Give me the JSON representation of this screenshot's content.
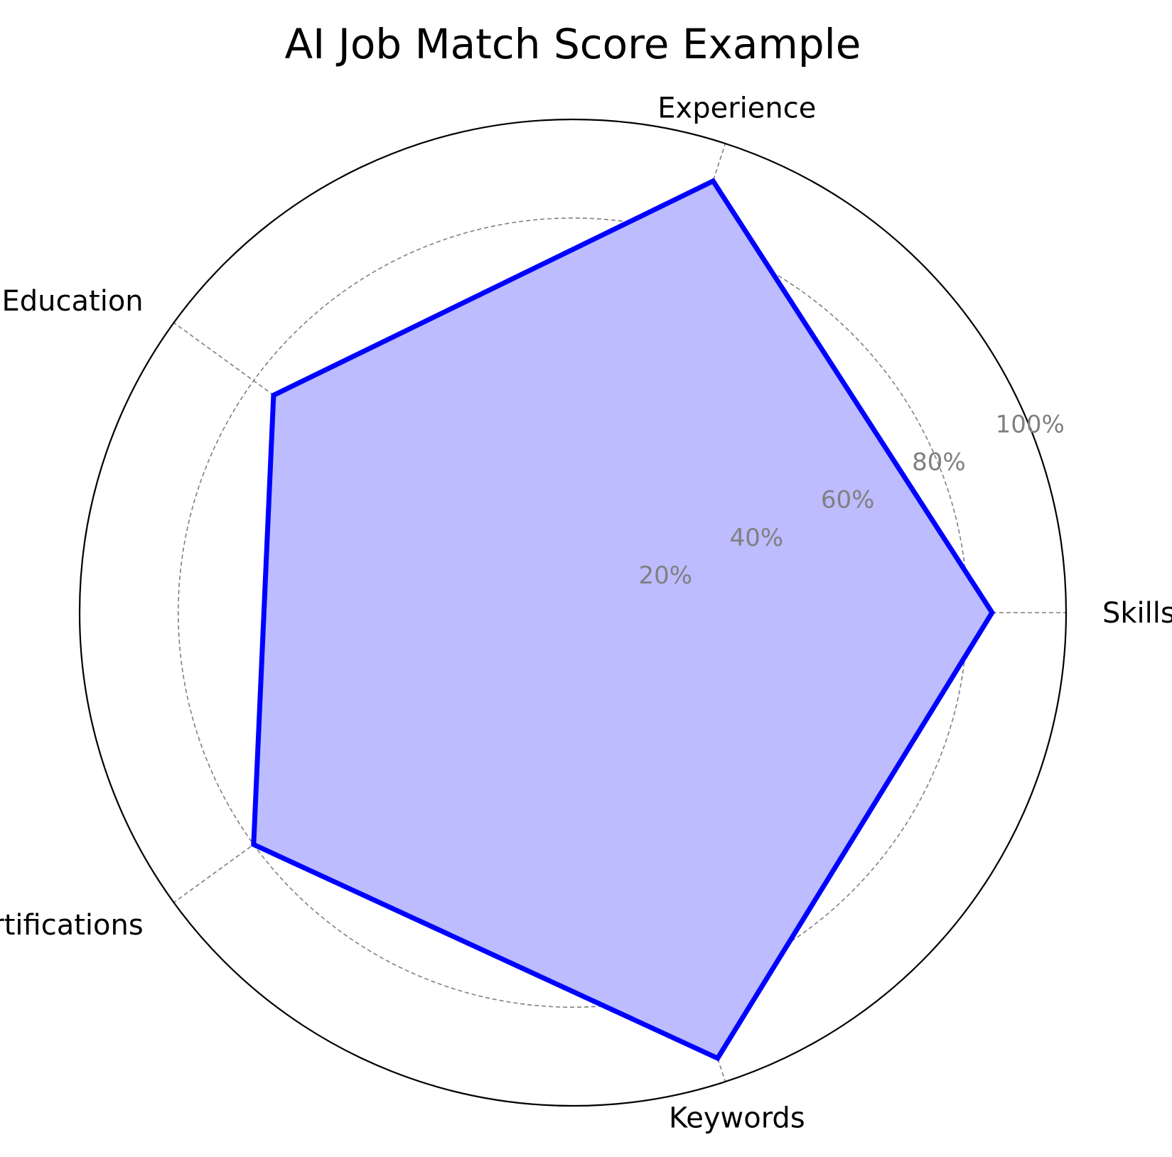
{
  "chart_data": {
    "type": "radar",
    "title": "AI Job Match Score Example",
    "categories": [
      "Skills",
      "Experience",
      "Education",
      "Certifications",
      "Keywords"
    ],
    "series": [
      {
        "values": [
          85,
          92,
          75,
          80,
          95
        ]
      }
    ],
    "rlim": [
      0,
      100
    ],
    "rticks": [
      20,
      40,
      60,
      80,
      100
    ],
    "rtick_labels": [
      "20%",
      "40%",
      "60%",
      "80%",
      "100%"
    ],
    "grid": true,
    "colors": {
      "line": "#0000ff",
      "fill": "#bcbcff",
      "grid": "#808080",
      "outer": "#000000"
    }
  }
}
